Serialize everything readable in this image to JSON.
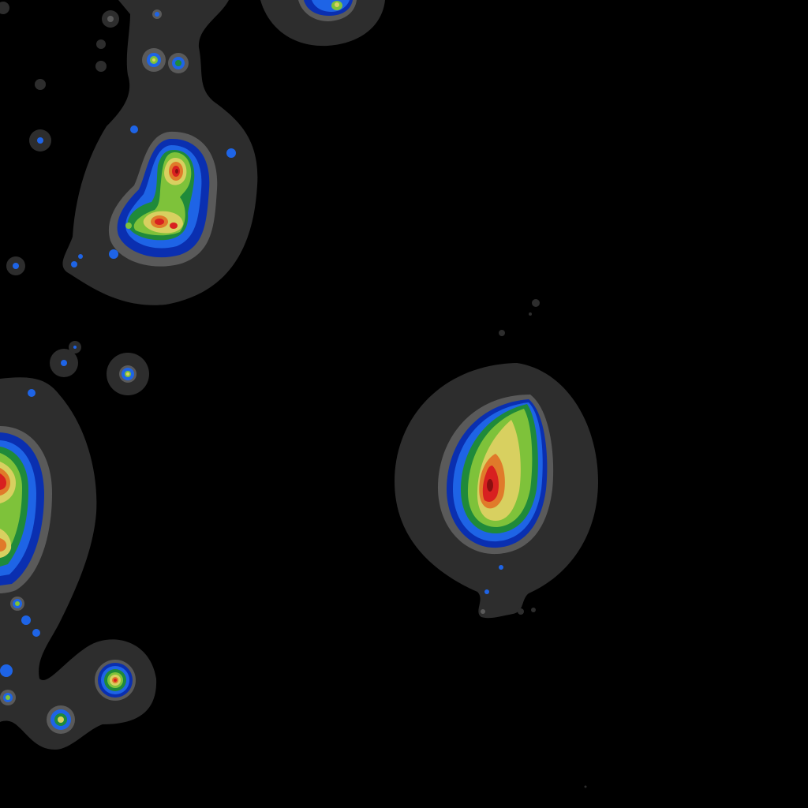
{
  "background": "#000000",
  "contour_levels": [
    {
      "name": "outer-halo",
      "color": "#2d2d2d"
    },
    {
      "name": "inner-halo",
      "color": "#5a5a5a"
    },
    {
      "name": "level-blue-dark",
      "color": "#0a2fb0"
    },
    {
      "name": "level-blue",
      "color": "#1e64e6"
    },
    {
      "name": "level-green-dark",
      "color": "#1f8a3a"
    },
    {
      "name": "level-green",
      "color": "#7ec23a"
    },
    {
      "name": "level-yellow",
      "color": "#d8d060"
    },
    {
      "name": "level-orange",
      "color": "#e07a2a"
    },
    {
      "name": "level-red",
      "color": "#d82020"
    },
    {
      "name": "level-dark-red",
      "color": "#8a1010"
    }
  ]
}
